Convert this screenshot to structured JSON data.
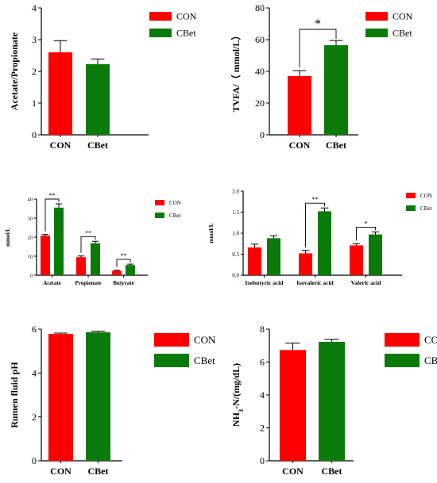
{
  "colors": {
    "con": "#ff0000",
    "cbet": "#0a7a0a",
    "axis": "#000000"
  },
  "chart_data": [
    {
      "type": "bar",
      "categories": [
        "CON",
        "CBet"
      ],
      "values": [
        2.6,
        2.23
      ],
      "errors": [
        0.37,
        0.16
      ],
      "ylabel": "Acetate/Propionate",
      "ylim": [
        0,
        4
      ],
      "yticks": [
        0,
        1,
        2,
        3,
        4
      ],
      "legend": [
        "CON",
        "CBet"
      ],
      "significance": []
    },
    {
      "type": "bar",
      "categories": [
        "CON",
        "CBet"
      ],
      "values": [
        37,
        56.5
      ],
      "errors": [
        3.5,
        3
      ],
      "ylabel": "TVFA/（ mmol/L）",
      "ylim": [
        0,
        80
      ],
      "yticks": [
        0,
        20,
        40,
        60,
        80
      ],
      "legend": [
        "CON",
        "CBet"
      ],
      "significance": [
        {
          "mark": "*",
          "group": 0
        }
      ]
    },
    {
      "type": "bar",
      "categories": [
        "Acetate",
        "Propionate",
        "Butyrate"
      ],
      "series": [
        {
          "name": "CON",
          "values": [
            20.8,
            9.5,
            2.3
          ],
          "errors": [
            0.6,
            0.6,
            0.3
          ]
        },
        {
          "name": "CBet",
          "values": [
            35.5,
            16.8,
            5.3
          ],
          "errors": [
            2,
            1,
            0.5
          ]
        }
      ],
      "ylabel": "mmol/L",
      "ylim": [
        0,
        40
      ],
      "yticks": [
        0,
        10,
        20,
        30,
        40
      ],
      "legend": [
        "CON",
        "CBet"
      ],
      "significance": [
        {
          "mark": "**",
          "group": 0
        },
        {
          "mark": "**",
          "group": 1
        },
        {
          "mark": "**",
          "group": 2
        }
      ]
    },
    {
      "type": "bar",
      "categories": [
        "Isobutyric acid",
        "Isovaleric acid",
        "Valeric acid"
      ],
      "series": [
        {
          "name": "CON",
          "values": [
            0.66,
            0.52,
            0.71
          ],
          "errors": [
            0.08,
            0.07,
            0.04
          ]
        },
        {
          "name": "CBet",
          "values": [
            0.88,
            1.52,
            0.97
          ],
          "errors": [
            0.06,
            0.08,
            0.06
          ]
        }
      ],
      "ylabel": "mmol/L",
      "ylim": [
        0,
        2.0
      ],
      "yticks": [
        "0.0",
        "0.5",
        "1.0",
        "1.5",
        "2.0"
      ],
      "legend": [
        "CON",
        "CBet"
      ],
      "significance": [
        {
          "mark": "**",
          "group": 1
        },
        {
          "mark": "*",
          "group": 2
        }
      ]
    },
    {
      "type": "bar",
      "categories": [
        "CON",
        "CBet"
      ],
      "values": [
        5.78,
        5.86
      ],
      "errors": [
        0.04,
        0.05
      ],
      "ylabel": "Rumen fluid pH",
      "ylim": [
        0,
        6
      ],
      "yticks": [
        0,
        2,
        4,
        6
      ],
      "legend": [
        "CON",
        "CBet"
      ],
      "significance": []
    },
    {
      "type": "bar",
      "categories": [
        "CON",
        "CBet"
      ],
      "values": [
        6.73,
        7.23
      ],
      "errors": [
        0.42,
        0.15
      ],
      "ylabel": "NH3-N/(mg/dL)",
      "ylabel_parts": [
        "NH",
        "3",
        "-N/(mg/dL)"
      ],
      "ylim": [
        0,
        8
      ],
      "yticks": [
        0,
        2,
        4,
        6,
        8
      ],
      "legend": [
        "CON",
        "CBet"
      ],
      "significance": []
    }
  ]
}
